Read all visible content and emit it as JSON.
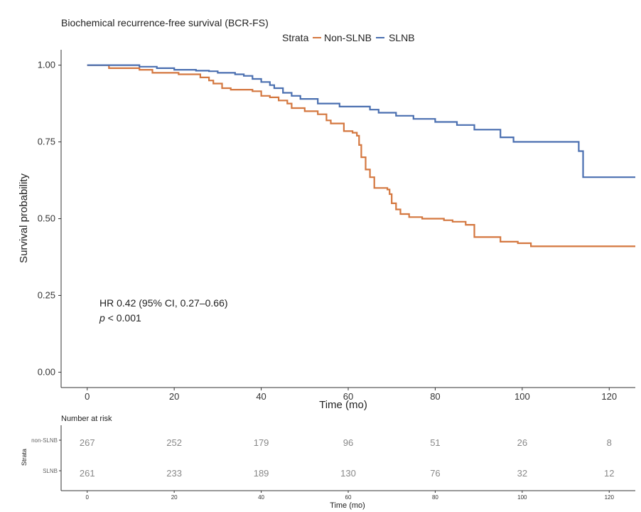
{
  "chart_data": [
    {
      "type": "line",
      "title": "Biochemical recurrence-free survival (BCR-FS)",
      "xlabel": "Time (mo)",
      "ylabel": "Survival probability",
      "xlim": [
        -6,
        126
      ],
      "ylim": [
        -0.05,
        1.05
      ],
      "xticks": [
        "0",
        "20",
        "40",
        "60",
        "80",
        "100",
        "120"
      ],
      "yticks": [
        "0.00",
        "0.25",
        "0.50",
        "0.75",
        "1.00"
      ],
      "grid": false,
      "legend": {
        "title": "Strata",
        "position": "top"
      },
      "series": [
        {
          "name": "Non-SLNB",
          "color": "#d4773f",
          "x": [
            0,
            5,
            12,
            15,
            21,
            26,
            28,
            29,
            31,
            33,
            38,
            40,
            42,
            44,
            46,
            47,
            50,
            53,
            55,
            56,
            59,
            61,
            62,
            62.5,
            63,
            64,
            65,
            66,
            69,
            69.5,
            70,
            71,
            72,
            74,
            77,
            82,
            84,
            87,
            89,
            95,
            99,
            102,
            126
          ],
          "y": [
            1.0,
            0.99,
            0.985,
            0.975,
            0.97,
            0.96,
            0.95,
            0.94,
            0.925,
            0.92,
            0.915,
            0.9,
            0.895,
            0.885,
            0.875,
            0.86,
            0.85,
            0.84,
            0.82,
            0.81,
            0.785,
            0.78,
            0.77,
            0.74,
            0.7,
            0.66,
            0.635,
            0.6,
            0.595,
            0.58,
            0.55,
            0.53,
            0.515,
            0.505,
            0.5,
            0.495,
            0.49,
            0.48,
            0.44,
            0.425,
            0.42,
            0.41,
            0.41
          ]
        },
        {
          "name": "SLNB",
          "color": "#4a6fb0",
          "x": [
            0,
            12,
            16,
            20,
            25,
            28,
            30,
            34,
            36,
            38,
            40,
            42,
            43,
            45,
            47,
            49,
            53,
            58,
            65,
            67,
            71,
            75,
            80,
            85,
            89,
            95,
            98,
            113,
            114,
            126
          ],
          "y": [
            1.0,
            0.995,
            0.99,
            0.985,
            0.982,
            0.98,
            0.975,
            0.97,
            0.965,
            0.955,
            0.945,
            0.935,
            0.925,
            0.91,
            0.9,
            0.89,
            0.875,
            0.865,
            0.855,
            0.845,
            0.835,
            0.825,
            0.815,
            0.805,
            0.79,
            0.765,
            0.75,
            0.72,
            0.635,
            0.635
          ]
        }
      ],
      "annotations": {
        "hr": "HR 0.42 (95% CI, 0.27–0.66)",
        "p_italic": "p",
        "p_rest": " < 0.001"
      }
    },
    {
      "type": "table",
      "title": "Number at risk",
      "ylabel": "Strata",
      "xlabel": "Time (mo)",
      "xlim": [
        -6,
        126
      ],
      "x": [
        0,
        20,
        40,
        60,
        80,
        100,
        120
      ],
      "xticks": [
        "0",
        "20",
        "40",
        "60",
        "80",
        "100",
        "120"
      ],
      "rows": [
        {
          "name": "non-SLNB",
          "values": [
            "267",
            "252",
            "179",
            "96",
            "51",
            "26",
            "8"
          ]
        },
        {
          "name": "SLNB",
          "values": [
            "261",
            "233",
            "189",
            "130",
            "76",
            "32",
            "12"
          ]
        }
      ]
    }
  ]
}
